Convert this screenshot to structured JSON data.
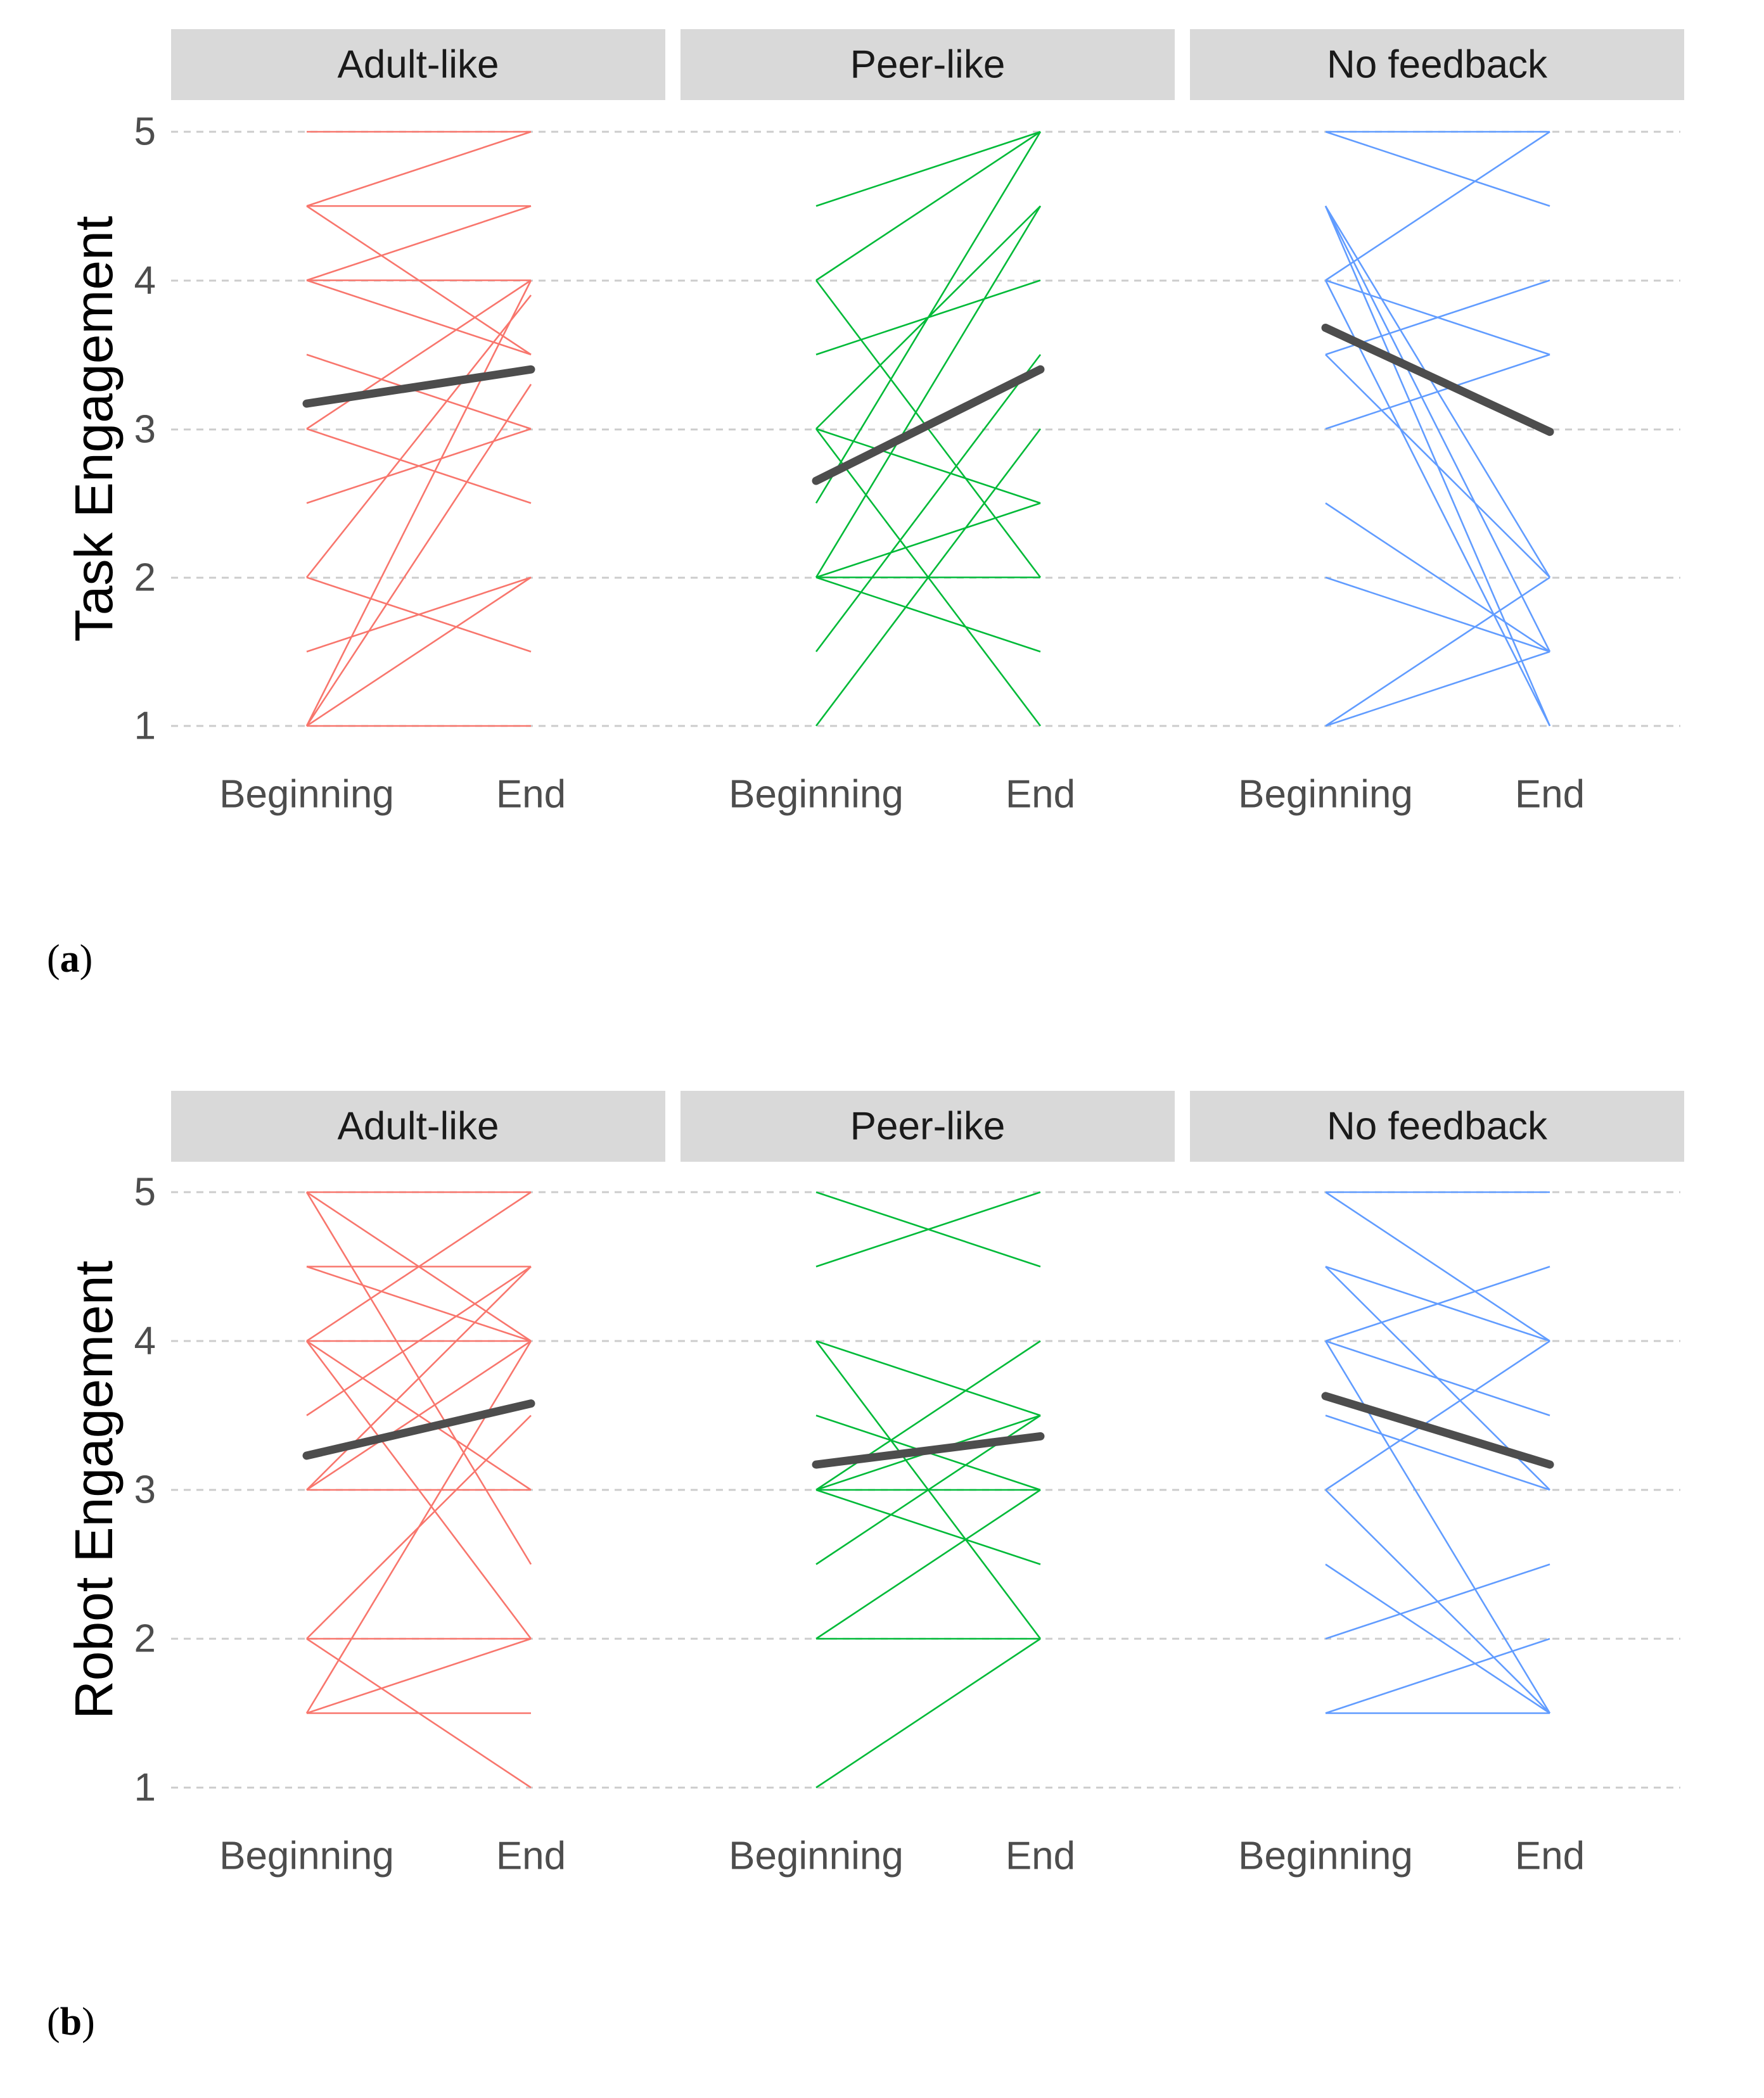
{
  "colors": {
    "adult": "#F8766D",
    "peer": "#00BA38",
    "nofeedback": "#619CFF",
    "mean": "#4d4d4d",
    "strip": "#d9d9d9",
    "grid": "#cccccc"
  },
  "chart_data": [
    {
      "type": "line",
      "subfigure": "a",
      "ylabel": "Task Engagement",
      "ylim": [
        1,
        5
      ],
      "yticks": [
        1,
        2,
        3,
        4,
        5
      ],
      "categories": [
        "Beginning",
        "End"
      ],
      "grid": "horizontal dashed",
      "panels": [
        {
          "label": "Adult-like",
          "color_key": "adult",
          "lines": [
            [
              5,
              5
            ],
            [
              4.5,
              5
            ],
            [
              4.5,
              4.5
            ],
            [
              4.5,
              3.5
            ],
            [
              4,
              4.5
            ],
            [
              4,
              4
            ],
            [
              4,
              3.5
            ],
            [
              3.5,
              3
            ],
            [
              3,
              4
            ],
            [
              3,
              2.5
            ],
            [
              2.5,
              3
            ],
            [
              2,
              3.9
            ],
            [
              2,
              1.5
            ],
            [
              1.5,
              2
            ],
            [
              1,
              4
            ],
            [
              1,
              3.3
            ],
            [
              1,
              2
            ],
            [
              1,
              1
            ]
          ],
          "mean": [
            3.17,
            3.4
          ]
        },
        {
          "label": "Peer-like",
          "color_key": "peer",
          "lines": [
            [
              4.5,
              5
            ],
            [
              4,
              5
            ],
            [
              4,
              2
            ],
            [
              3.5,
              4
            ],
            [
              3,
              4.5
            ],
            [
              3,
              2.5
            ],
            [
              3,
              1
            ],
            [
              2.5,
              5
            ],
            [
              2,
              4.5
            ],
            [
              2,
              2.5
            ],
            [
              2,
              2
            ],
            [
              2,
              1.5
            ],
            [
              1.5,
              3.5
            ],
            [
              1,
              3
            ]
          ],
          "mean": [
            2.65,
            3.4
          ]
        },
        {
          "label": "No feedback",
          "color_key": "nofeedback",
          "lines": [
            [
              5,
              4.5
            ],
            [
              5,
              5
            ],
            [
              4.5,
              2
            ],
            [
              4.5,
              1.5
            ],
            [
              4.5,
              1
            ],
            [
              4,
              5
            ],
            [
              4,
              3.5
            ],
            [
              4,
              1
            ],
            [
              3.5,
              4
            ],
            [
              3.5,
              2
            ],
            [
              3,
              3.5
            ],
            [
              2.5,
              1.5
            ],
            [
              2,
              1.5
            ],
            [
              1,
              2
            ],
            [
              1,
              1.5
            ]
          ],
          "mean": [
            3.68,
            2.98
          ]
        }
      ]
    },
    {
      "type": "line",
      "subfigure": "b",
      "ylabel": "Robot Engagement",
      "ylim": [
        1,
        5
      ],
      "yticks": [
        1,
        2,
        3,
        4,
        5
      ],
      "categories": [
        "Beginning",
        "End"
      ],
      "grid": "horizontal dashed",
      "panels": [
        {
          "label": "Adult-like",
          "color_key": "adult",
          "lines": [
            [
              5,
              5
            ],
            [
              5,
              4
            ],
            [
              5,
              2.5
            ],
            [
              4.5,
              4.5
            ],
            [
              4.5,
              4
            ],
            [
              4,
              5
            ],
            [
              4,
              4
            ],
            [
              4,
              3
            ],
            [
              4,
              2
            ],
            [
              3.5,
              4.5
            ],
            [
              3,
              4.5
            ],
            [
              3,
              4
            ],
            [
              3,
              3
            ],
            [
              2,
              3.5
            ],
            [
              2,
              2
            ],
            [
              2,
              1
            ],
            [
              1.5,
              4
            ],
            [
              1.5,
              2
            ],
            [
              1.5,
              1.5
            ]
          ],
          "mean": [
            3.23,
            3.58
          ]
        },
        {
          "label": "Peer-like",
          "color_key": "peer",
          "lines": [
            [
              5,
              4.5
            ],
            [
              4.5,
              5
            ],
            [
              4,
              3.5
            ],
            [
              4,
              2
            ],
            [
              3.5,
              3
            ],
            [
              3,
              4
            ],
            [
              3,
              3.5
            ],
            [
              3,
              3
            ],
            [
              3,
              2.5
            ],
            [
              2.5,
              3.5
            ],
            [
              2,
              3
            ],
            [
              2,
              2
            ],
            [
              1,
              2
            ]
          ],
          "mean": [
            3.17,
            3.36
          ]
        },
        {
          "label": "No feedback",
          "color_key": "nofeedback",
          "lines": [
            [
              5,
              5
            ],
            [
              5,
              4
            ],
            [
              4.5,
              4
            ],
            [
              4.5,
              3
            ],
            [
              4,
              4.5
            ],
            [
              4,
              3.5
            ],
            [
              4,
              1.5
            ],
            [
              3.5,
              3
            ],
            [
              3,
              4
            ],
            [
              3,
              1.5
            ],
            [
              2.5,
              1.5
            ],
            [
              2,
              2.5
            ],
            [
              1.5,
              2
            ],
            [
              1.5,
              1.5
            ]
          ],
          "mean": [
            3.63,
            3.17
          ]
        }
      ]
    }
  ]
}
